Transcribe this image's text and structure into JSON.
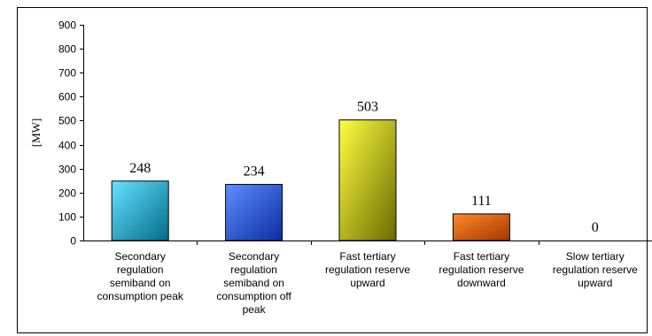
{
  "chart_data": {
    "type": "bar",
    "ylabel": "[MW]",
    "xlabel": "",
    "ylim": [
      0,
      900
    ],
    "yticks": [
      0,
      100,
      200,
      300,
      400,
      500,
      600,
      700,
      800,
      900
    ],
    "grid": false,
    "legend": "none",
    "categories": [
      [
        "Secondary",
        "regulation",
        "semiband on",
        "consumption peak"
      ],
      [
        "Secondary",
        "regulation",
        "semiband on",
        "consumption off",
        "peak"
      ],
      [
        "Fast tertiary",
        "regulation reserve",
        "upward"
      ],
      [
        "Fast tertiary",
        "regulation reserve",
        "downward"
      ],
      [
        "Slow tertiary",
        "regulation reserve",
        "upward"
      ]
    ],
    "values": [
      248,
      234,
      503,
      111,
      0
    ],
    "data_labels": [
      "248",
      "234",
      "503",
      "111",
      "0"
    ],
    "colors": [
      {
        "light": "#66e3ff",
        "dark": "#006b8a"
      },
      {
        "light": "#5f8dff",
        "dark": "#0a2ea0"
      },
      {
        "light": "#ffff40",
        "dark": "#6b6a00"
      },
      {
        "light": "#ff8a2a",
        "dark": "#a33600"
      },
      {
        "light": "#cccccc",
        "dark": "#777777"
      }
    ]
  }
}
